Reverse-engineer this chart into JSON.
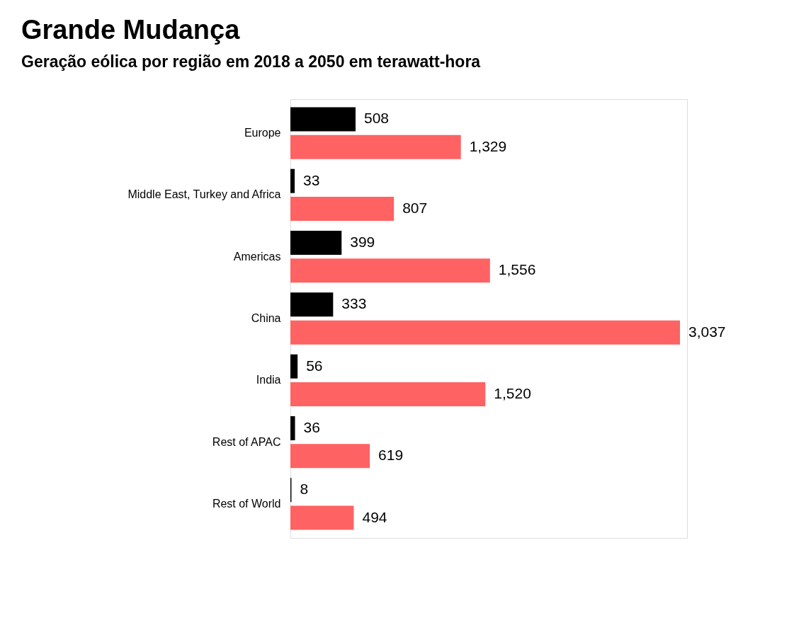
{
  "chart_data": {
    "type": "bar",
    "orientation": "horizontal",
    "title": "Grande Mudança",
    "subtitle": "Geração eólica por região em 2018 a 2050 em terawatt-hora",
    "categories": [
      "Europe",
      "Middle East, Turkey and Africa",
      "Americas",
      "China",
      "India",
      "Rest of APAC",
      "Rest of World"
    ],
    "series": [
      {
        "color": "#000000",
        "values": [
          508,
          33,
          399,
          333,
          56,
          36,
          8
        ],
        "value_labels": [
          "508",
          "33",
          "399",
          "333",
          "56",
          "36",
          "8"
        ]
      },
      {
        "color": "#ff6262",
        "values": [
          1329,
          807,
          1556,
          3037,
          1520,
          619,
          494
        ],
        "value_labels": [
          "1,329",
          "807",
          "1,556",
          "3,037",
          "1,520",
          "619",
          "494"
        ]
      }
    ],
    "tick_labels": "y"
  }
}
